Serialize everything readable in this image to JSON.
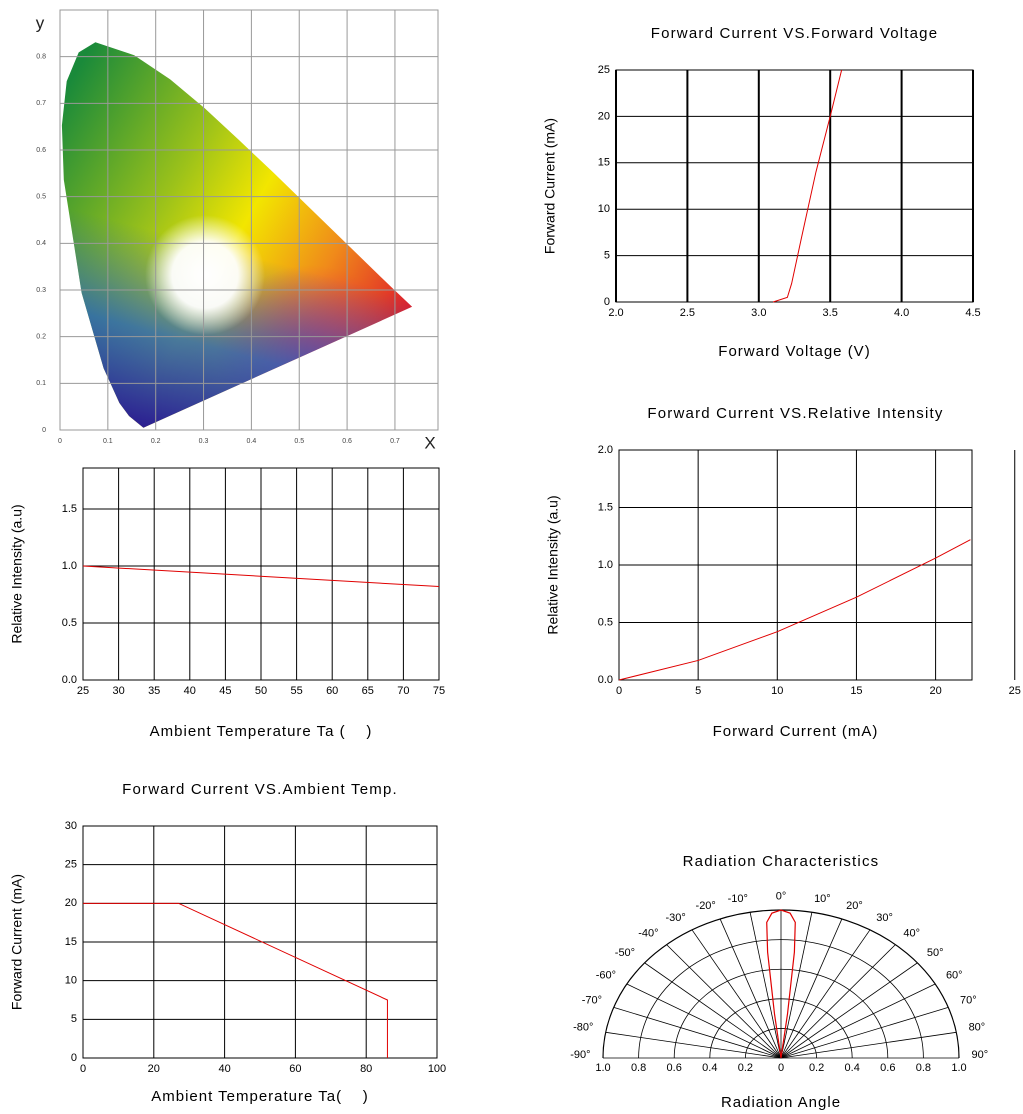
{
  "chart_data": [
    {
      "type": "cie",
      "xlabel": "X",
      "ylabel": "y",
      "xlim": [
        0,
        0.79
      ],
      "ylim": [
        0,
        0.9
      ],
      "xticks": [
        0,
        0.1,
        0.2,
        0.3,
        0.4,
        0.5,
        0.6,
        0.7
      ],
      "yticks": [
        0,
        0.1,
        0.2,
        0.3,
        0.4,
        0.5,
        0.6,
        0.7,
        0.8
      ],
      "grid": true
    },
    {
      "type": "line",
      "title": "Forward Current VS.Forward Voltage",
      "xlabel": "Forward Voltage (V)",
      "ylabel": "Forward Current (mA)",
      "x": [
        3.1,
        3.2,
        3.23,
        3.3,
        3.4,
        3.5,
        3.58
      ],
      "values": [
        0,
        0.5,
        2,
        7,
        14,
        20,
        25
      ],
      "color": "#e00000",
      "xlim": [
        2,
        4.5
      ],
      "ylim": [
        0,
        25
      ],
      "xticks": [
        {
          "value": 2,
          "label": "2.0"
        },
        2.5,
        {
          "value": 3,
          "label": "3.0"
        },
        3.5,
        {
          "value": 4,
          "label": "4.0"
        },
        4.5
      ],
      "yticks": [
        0,
        5,
        10,
        15,
        20,
        25
      ],
      "grid": true
    },
    {
      "type": "line",
      "xlabel": "Ambient Temperature Ta (    )",
      "ylabel": "Relative Intensity (a.u)",
      "x": [
        25,
        75
      ],
      "values": [
        1.0,
        0.82
      ],
      "color": "#e00000",
      "xlim": [
        25,
        75
      ],
      "ylim": [
        0,
        1.86
      ],
      "xticks": [
        25,
        30,
        35,
        40,
        45,
        50,
        55,
        60,
        65,
        70,
        75
      ],
      "yticks": [
        {
          "value": 0,
          "label": "0.0"
        },
        0.5,
        {
          "value": 1,
          "label": "1.0"
        },
        1.5
      ],
      "grid": true
    },
    {
      "type": "line",
      "title": "Forward Current VS.Relative Intensity",
      "xlabel": "Forward Current (mA)",
      "ylabel": "Relative Intensity (a.u)",
      "x": [
        0,
        5,
        10,
        15,
        20,
        22.2
      ],
      "values": [
        0,
        0.17,
        0.42,
        0.72,
        1.06,
        1.22
      ],
      "color": "#e00000",
      "xlim": [
        0,
        22.3
      ],
      "ylim": [
        0,
        2
      ],
      "xticks": [
        0,
        5,
        10,
        15,
        20,
        25
      ],
      "yticks": [
        {
          "value": 0,
          "label": "0.0"
        },
        0.5,
        {
          "value": 1,
          "label": "1.0"
        },
        1.5,
        {
          "value": 2,
          "label": "2.0"
        }
      ],
      "grid": true
    },
    {
      "type": "line",
      "title": "Forward Current VS.Ambient Temp.",
      "xlabel": "Ambient Temperature Ta(    )",
      "ylabel": "Forward Current (mA)",
      "x": [
        0,
        27,
        86,
        86
      ],
      "values": [
        20,
        20,
        7.5,
        0
      ],
      "color": "#e00000",
      "xlim": [
        0,
        100
      ],
      "ylim": [
        0,
        30
      ],
      "xticks": [
        0,
        20,
        40,
        60,
        80,
        100
      ],
      "yticks": [
        0,
        5,
        10,
        15,
        20,
        25,
        30
      ],
      "grid": true
    },
    {
      "type": "polar",
      "title": "Radiation Characteristics",
      "xlabel": "Radiation Angle",
      "angles": [
        -8,
        -7,
        -6,
        -5,
        -3,
        0,
        3,
        5,
        6,
        7,
        8
      ],
      "values": [
        0,
        0.3,
        0.72,
        0.92,
        0.98,
        1.0,
        0.98,
        0.92,
        0.72,
        0.3,
        0
      ],
      "color": "#e00000",
      "rticks": [
        0,
        0.2,
        0.4,
        0.6,
        0.8,
        {
          "value": 1,
          "label": "1.0"
        }
      ],
      "thetaticks": [
        {
          "value": -90,
          "label": "-90°"
        },
        {
          "value": -80,
          "label": "-80°"
        },
        {
          "value": -70,
          "label": "-70°"
        },
        {
          "value": -60,
          "label": "-60°"
        },
        {
          "value": -50,
          "label": "-50°"
        },
        {
          "value": -40,
          "label": "-40°"
        },
        {
          "value": -30,
          "label": "-30°"
        },
        {
          "value": -20,
          "label": "-20°"
        },
        {
          "value": -10,
          "label": "-10°"
        },
        {
          "value": 0,
          "label": "0°"
        },
        {
          "value": 10,
          "label": "10°"
        },
        {
          "value": 20,
          "label": "20°"
        },
        {
          "value": 30,
          "label": "30°"
        },
        {
          "value": 40,
          "label": "40°"
        },
        {
          "value": 50,
          "label": "50°"
        },
        {
          "value": 60,
          "label": "60°"
        },
        {
          "value": 70,
          "label": "70°"
        },
        {
          "value": 80,
          "label": "80°"
        },
        {
          "value": 90,
          "label": "90°"
        }
      ]
    }
  ]
}
